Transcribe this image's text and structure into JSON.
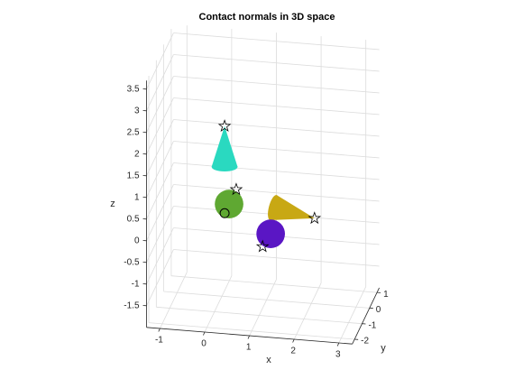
{
  "chart_data": {
    "type": "scatter3d",
    "title": "Contact normals in 3D space",
    "xlabel": "x",
    "ylabel": "y",
    "zlabel": "z",
    "xlim": [
      -1.3,
      3.3
    ],
    "ylim": [
      -2.3,
      1.3
    ],
    "zlim": [
      -2,
      3.7
    ],
    "xticks": [
      -1,
      0,
      1,
      2,
      3
    ],
    "yticks": [
      -2,
      -1,
      0,
      1
    ],
    "zticks": [
      -1.5,
      -1,
      -0.5,
      0,
      0.5,
      1,
      1.5,
      2,
      2.5,
      3,
      3.5
    ],
    "grid": true,
    "cones": [
      {
        "color": "#2ad9c0",
        "apex": [
          0.06,
          0,
          1.93
        ],
        "base": [
          0.06,
          0,
          0.99
        ],
        "radius": 0.3
      },
      {
        "color": "#c8a814",
        "apex": [
          2.07,
          0,
          -0.03
        ],
        "base": [
          1.15,
          0,
          0.14
        ],
        "radius": 0.3
      }
    ],
    "spheres": [
      {
        "color": "#5fa832",
        "center": [
          0.16,
          0,
          0.14
        ],
        "radius": 0.33
      },
      {
        "color": "#5a16c4",
        "center": [
          1.09,
          0,
          -0.47
        ],
        "radius": 0.33
      }
    ],
    "markers": [
      {
        "symbol": "star",
        "point": [
          0.06,
          0,
          1.93
        ]
      },
      {
        "symbol": "star",
        "point": [
          0.32,
          0,
          0.49
        ]
      },
      {
        "symbol": "circle",
        "point": [
          0.06,
          0,
          -0.08
        ]
      },
      {
        "symbol": "star",
        "point": [
          2.07,
          0,
          -0.03
        ]
      },
      {
        "symbol": "star",
        "point": [
          0.91,
          0,
          -0.78
        ]
      }
    ]
  }
}
